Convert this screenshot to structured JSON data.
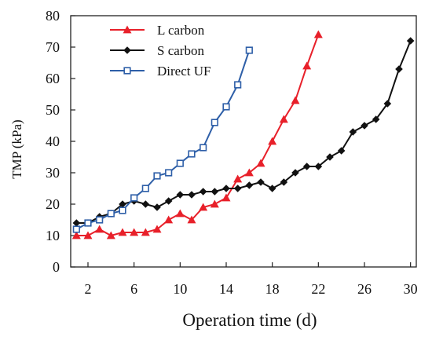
{
  "chart_data": {
    "type": "line",
    "title": "",
    "xlabel": "Operation time (d)",
    "ylabel": "TMP (kPa)",
    "xlim": [
      0.5,
      30.5
    ],
    "ylim": [
      0,
      80
    ],
    "xticks": [
      2,
      6,
      10,
      14,
      18,
      22,
      26,
      30
    ],
    "yticks": [
      0,
      10,
      20,
      30,
      40,
      50,
      60,
      70,
      80
    ],
    "grid": false,
    "legend_position": "top-left",
    "series": [
      {
        "name": "L carbon",
        "color": "#e8202a",
        "marker": "triangle",
        "x": [
          1,
          2,
          3,
          4,
          5,
          6,
          7,
          8,
          9,
          10,
          11,
          12,
          13,
          14,
          15,
          16,
          17,
          18,
          19,
          20,
          21,
          22
        ],
        "y": [
          10,
          10,
          12,
          10,
          11,
          11,
          11,
          12,
          15,
          17,
          15,
          19,
          20,
          22,
          28,
          30,
          33,
          40,
          47,
          53,
          64,
          74
        ]
      },
      {
        "name": "S carbon",
        "color": "#111111",
        "marker": "diamond",
        "x": [
          1,
          2,
          3,
          4,
          5,
          6,
          7,
          8,
          9,
          10,
          11,
          12,
          13,
          14,
          15,
          16,
          17,
          18,
          19,
          20,
          21,
          22,
          23,
          24,
          25,
          26,
          27,
          28,
          29,
          30
        ],
        "y": [
          14,
          14,
          16,
          17,
          20,
          21,
          20,
          19,
          21,
          23,
          23,
          24,
          24,
          25,
          25,
          26,
          27,
          25,
          27,
          30,
          32,
          32,
          35,
          37,
          43,
          45,
          47,
          52,
          63,
          72
        ]
      },
      {
        "name": "Direct UF",
        "color": "#2e5fa8",
        "marker": "square",
        "x": [
          1,
          2,
          3,
          4,
          5,
          6,
          7,
          8,
          9,
          10,
          11,
          12,
          13,
          14,
          15,
          16
        ],
        "y": [
          12,
          14,
          15,
          17,
          18,
          22,
          25,
          29,
          30,
          33,
          36,
          38,
          46,
          51,
          58,
          69
        ]
      }
    ]
  }
}
